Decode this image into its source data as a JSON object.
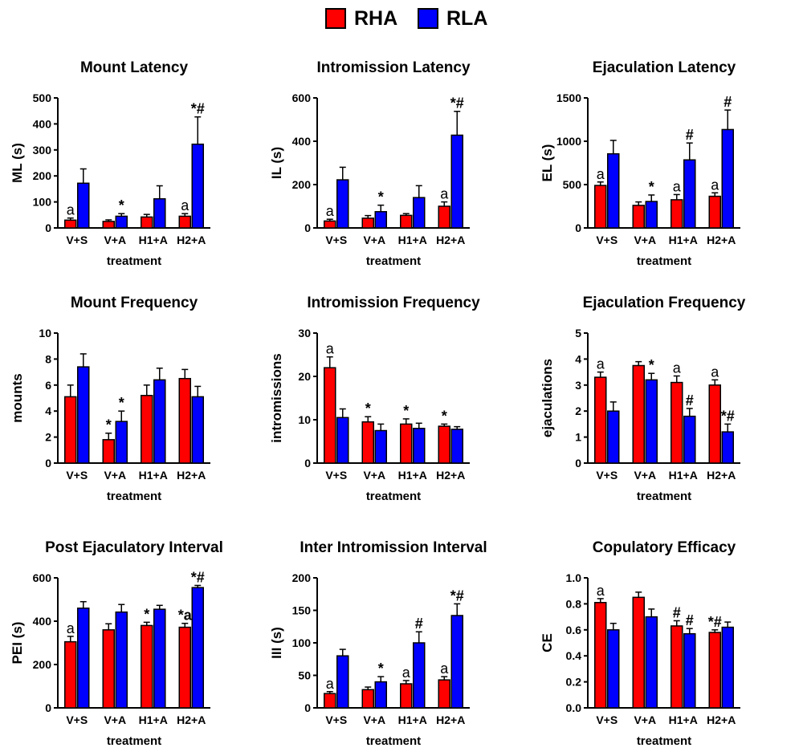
{
  "legend": [
    {
      "label": "RHA",
      "color": "#ff0000"
    },
    {
      "label": "RLA",
      "color": "#0000ff"
    }
  ],
  "chart_data": [
    {
      "type": "bar",
      "title": "Mount Latency",
      "ylabel": "ML (s)",
      "xlabel": "treatment",
      "categories": [
        "V+S",
        "V+A",
        "H1+A",
        "H2+A"
      ],
      "ylim": [
        0,
        500
      ],
      "yticks": [
        0,
        100,
        200,
        300,
        400,
        500
      ],
      "series": [
        {
          "name": "RHA",
          "values": [
            30,
            25,
            42,
            45
          ],
          "errors": [
            8,
            6,
            10,
            10
          ],
          "marks": [
            "a",
            "",
            "",
            "a"
          ]
        },
        {
          "name": "RLA",
          "values": [
            172,
            45,
            112,
            322
          ],
          "errors": [
            55,
            10,
            50,
            105
          ],
          "marks": [
            "",
            "*",
            "",
            "*#"
          ]
        }
      ]
    },
    {
      "type": "bar",
      "title": "Intromission Latency",
      "ylabel": "IL (s)",
      "xlabel": "treatment",
      "categories": [
        "V+S",
        "V+A",
        "H1+A",
        "H2+A"
      ],
      "ylim": [
        0,
        600
      ],
      "yticks": [
        0,
        200,
        400,
        600
      ],
      "series": [
        {
          "name": "RHA",
          "values": [
            32,
            45,
            58,
            100
          ],
          "errors": [
            8,
            12,
            8,
            20
          ],
          "marks": [
            "a",
            "",
            "",
            "a"
          ]
        },
        {
          "name": "RLA",
          "values": [
            222,
            75,
            140,
            428
          ],
          "errors": [
            58,
            30,
            55,
            110
          ],
          "marks": [
            "",
            "*",
            "",
            "*#"
          ]
        }
      ]
    },
    {
      "type": "bar",
      "title": "Ejaculation Latency",
      "ylabel": "EL (s)",
      "xlabel": "treatment",
      "categories": [
        "V+S",
        "V+A",
        "H1+A",
        "H2+A"
      ],
      "ylim": [
        0,
        1500
      ],
      "yticks": [
        0,
        500,
        1000,
        1500
      ],
      "series": [
        {
          "name": "RHA",
          "values": [
            490,
            260,
            325,
            365
          ],
          "errors": [
            40,
            40,
            60,
            40
          ],
          "marks": [
            "a",
            "",
            "a",
            "a"
          ]
        },
        {
          "name": "RLA",
          "values": [
            855,
            305,
            785,
            1135
          ],
          "errors": [
            155,
            75,
            195,
            225
          ],
          "marks": [
            "",
            "*",
            "#",
            "#"
          ]
        }
      ]
    },
    {
      "type": "bar",
      "title": "Mount Frequency",
      "ylabel": "mounts",
      "xlabel": "treatment",
      "categories": [
        "V+S",
        "V+A",
        "H1+A",
        "H2+A"
      ],
      "ylim": [
        0,
        10
      ],
      "yticks": [
        0,
        2,
        4,
        6,
        8,
        10
      ],
      "series": [
        {
          "name": "RHA",
          "values": [
            5.1,
            1.8,
            5.2,
            6.5
          ],
          "errors": [
            0.9,
            0.5,
            0.8,
            0.7
          ],
          "marks": [
            "",
            "*",
            "",
            ""
          ]
        },
        {
          "name": "RLA",
          "values": [
            7.4,
            3.2,
            6.4,
            5.1
          ],
          "errors": [
            1.0,
            0.8,
            0.9,
            0.8
          ],
          "marks": [
            "",
            "*",
            "",
            ""
          ]
        }
      ]
    },
    {
      "type": "bar",
      "title": "Intromission Frequency",
      "ylabel": "intromissions",
      "xlabel": "treatment",
      "categories": [
        "V+S",
        "V+A",
        "H1+A",
        "H2+A"
      ],
      "ylim": [
        0,
        30
      ],
      "yticks": [
        0,
        10,
        20,
        30
      ],
      "series": [
        {
          "name": "RHA",
          "values": [
            22,
            9.5,
            9,
            8.5
          ],
          "errors": [
            2.5,
            1.2,
            1.2,
            0.5
          ],
          "marks": [
            "a",
            "*",
            "*",
            "*"
          ]
        },
        {
          "name": "RLA",
          "values": [
            10.5,
            7.5,
            8,
            7.8
          ],
          "errors": [
            2,
            1.5,
            1.2,
            0.6
          ],
          "marks": [
            "",
            "",
            "",
            ""
          ]
        }
      ]
    },
    {
      "type": "bar",
      "title": "Ejaculation Frequency",
      "ylabel": "ejaculations",
      "xlabel": "treatment",
      "categories": [
        "V+S",
        "V+A",
        "H1+A",
        "H2+A"
      ],
      "ylim": [
        0,
        5
      ],
      "yticks": [
        0,
        1,
        2,
        3,
        4,
        5
      ],
      "series": [
        {
          "name": "RHA",
          "values": [
            3.3,
            3.75,
            3.1,
            3.0
          ],
          "errors": [
            0.2,
            0.15,
            0.25,
            0.2
          ],
          "marks": [
            "a",
            "",
            "a",
            "a"
          ]
        },
        {
          "name": "RLA",
          "values": [
            2.0,
            3.2,
            1.8,
            1.2
          ],
          "errors": [
            0.35,
            0.25,
            0.3,
            0.3
          ],
          "marks": [
            "",
            "*",
            "#",
            "*#"
          ]
        }
      ]
    },
    {
      "type": "bar",
      "title": "Post Ejaculatory Interval",
      "ylabel": "PEI (s)",
      "xlabel": "treatment",
      "categories": [
        "V+S",
        "V+A",
        "H1+A",
        "H2+A"
      ],
      "ylim": [
        0,
        600
      ],
      "yticks": [
        0,
        200,
        400,
        600
      ],
      "series": [
        {
          "name": "RHA",
          "values": [
            305,
            360,
            380,
            372
          ],
          "errors": [
            25,
            28,
            15,
            18
          ],
          "marks": [
            "a",
            "",
            "*",
            "*a"
          ]
        },
        {
          "name": "RLA",
          "values": [
            460,
            442,
            455,
            555
          ],
          "errors": [
            30,
            35,
            18,
            10
          ],
          "marks": [
            "",
            "",
            "",
            "*#"
          ]
        }
      ]
    },
    {
      "type": "bar",
      "title": "Inter Intromission Interval",
      "ylabel": "III (s)",
      "xlabel": "treatment",
      "categories": [
        "V+S",
        "V+A",
        "H1+A",
        "H2+A"
      ],
      "ylim": [
        0,
        200
      ],
      "yticks": [
        0,
        50,
        100,
        150,
        200
      ],
      "series": [
        {
          "name": "RHA",
          "values": [
            22,
            28,
            37,
            43
          ],
          "errors": [
            3,
            4,
            5,
            5
          ],
          "marks": [
            "a",
            "",
            "a",
            "a"
          ]
        },
        {
          "name": "RLA",
          "values": [
            80,
            40,
            100,
            142
          ],
          "errors": [
            10,
            8,
            17,
            18
          ],
          "marks": [
            "",
            "*",
            "#",
            "*#"
          ]
        }
      ]
    },
    {
      "type": "bar",
      "title": "Copulatory Efficacy",
      "ylabel": "CE",
      "xlabel": "treatment",
      "categories": [
        "V+S",
        "V+A",
        "H1+A",
        "H2+A"
      ],
      "ylim": [
        0,
        1.0
      ],
      "yticks": [
        0.0,
        0.2,
        0.4,
        0.6,
        0.8,
        1.0
      ],
      "series": [
        {
          "name": "RHA",
          "values": [
            0.81,
            0.85,
            0.63,
            0.58
          ],
          "errors": [
            0.03,
            0.04,
            0.04,
            0.02
          ],
          "marks": [
            "a",
            "",
            "#",
            "*#"
          ]
        },
        {
          "name": "RLA",
          "values": [
            0.6,
            0.7,
            0.57,
            0.62
          ],
          "errors": [
            0.05,
            0.06,
            0.04,
            0.04
          ],
          "marks": [
            "",
            "",
            "#",
            ""
          ]
        }
      ]
    }
  ]
}
